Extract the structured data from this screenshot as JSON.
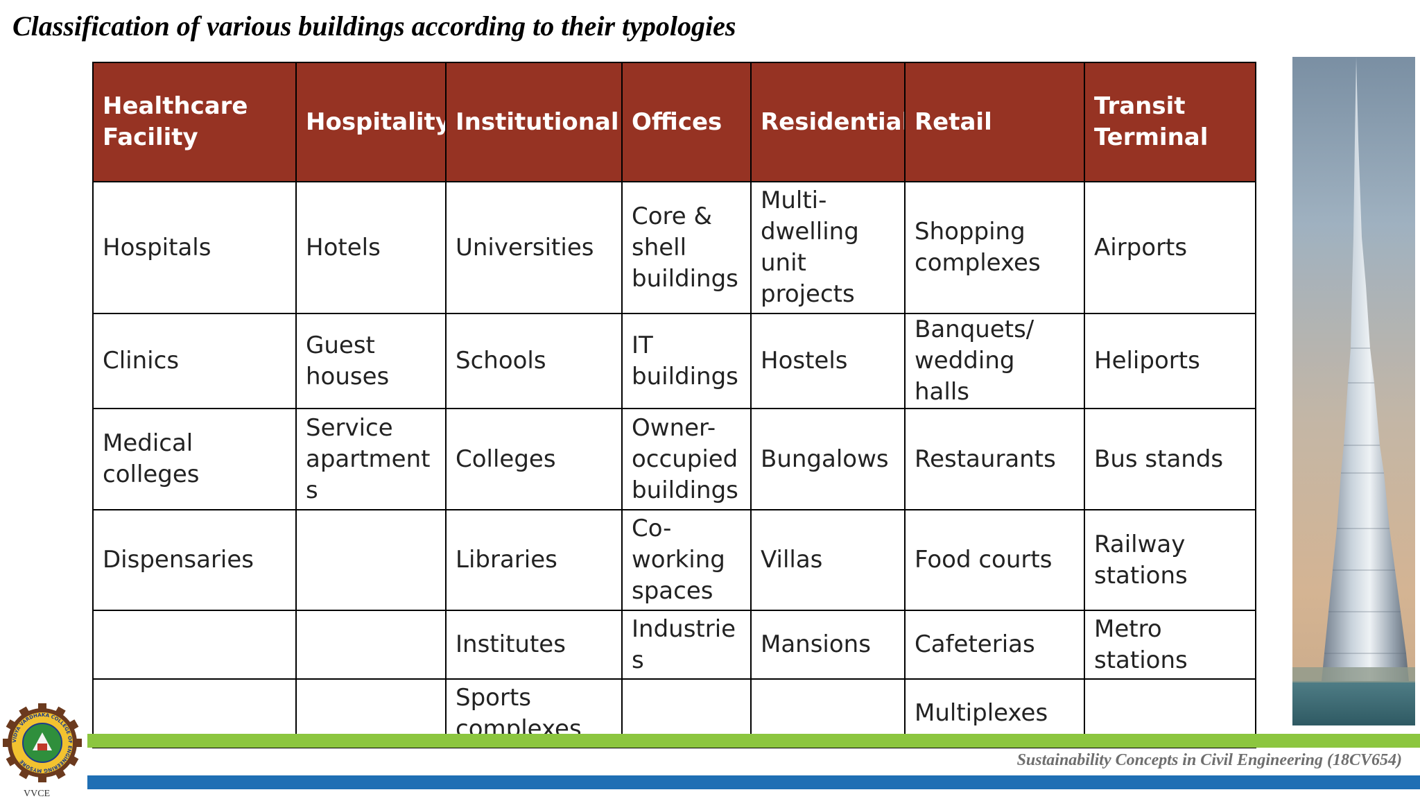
{
  "title": "Classification of various buildings according to their typologies",
  "table": {
    "headers": [
      "Healthcare Facility",
      "Hospitality",
      "Institutional",
      "Offices",
      "Residential",
      "Retail",
      "Transit Terminal"
    ],
    "rows": [
      [
        "Hospitals",
        "Hotels",
        "Universities",
        "Core & shell buildings",
        "Multi-dwelling unit projects",
        "Shopping complexes",
        "Airports"
      ],
      [
        "Clinics",
        "Guest houses",
        "Schools",
        "IT buildings",
        "Hostels",
        "Banquets/ wedding halls",
        "Heliports"
      ],
      [
        "Medical colleges",
        "Service apartments",
        "Colleges",
        "Owner-occupied buildings",
        "Bungalows",
        "Restaurants",
        "Bus stands"
      ],
      [
        "Dispensaries",
        "",
        "Libraries",
        "Co-working spaces",
        "Villas",
        "Food courts",
        "Railway stations"
      ],
      [
        "",
        "",
        "Institutes",
        "Industries",
        "Mansions",
        "Cafeterias",
        "Metro stations"
      ],
      [
        "",
        "",
        "Sports complexes",
        "",
        "",
        "Multiplexes",
        ""
      ]
    ]
  },
  "footer": {
    "course": "Sustainability Concepts in Civil Engineering  (18CV654)"
  },
  "logo": {
    "caption": "VVCE",
    "ring_text": "VIDYA VARDHAKA COLLEGE OF ENGINEERING MYSORE"
  },
  "colors": {
    "header_bg": "#963323",
    "header_text": "#ffffff",
    "band_green": "#8cc63f",
    "band_blue": "#1f6fb4"
  },
  "icons": {
    "logo": "college-emblem-icon",
    "photo": "skyscraper-photo"
  }
}
